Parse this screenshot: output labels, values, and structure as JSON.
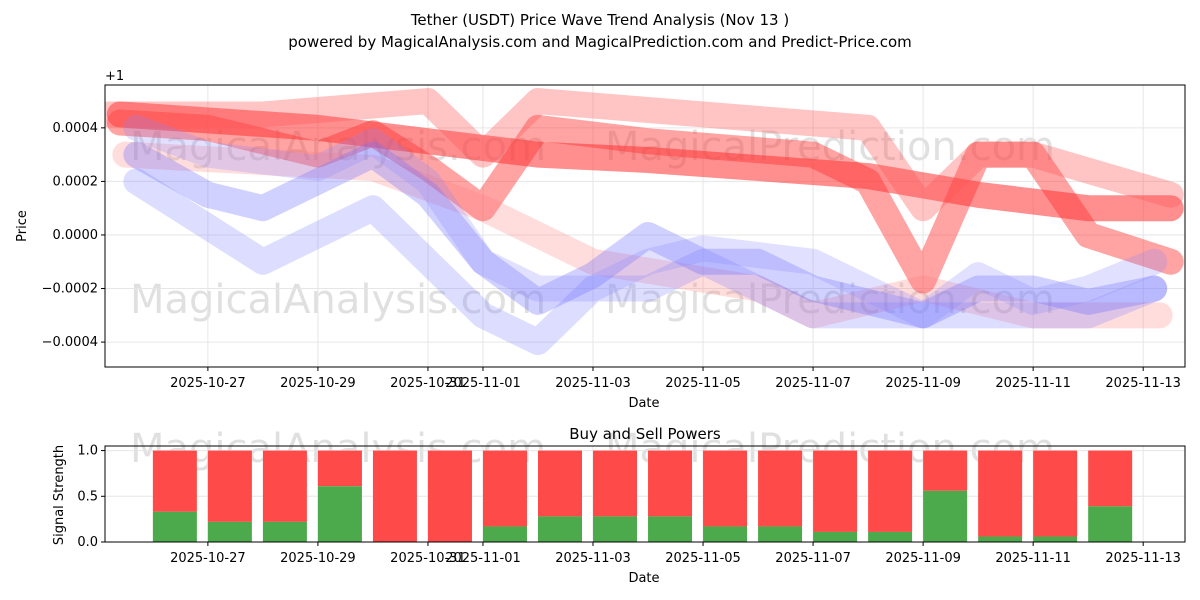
{
  "chart_data": [
    {
      "type": "line",
      "title": "Tether (USDT) Price Wave Trend Analysis (Nov 13 )",
      "subtitle": "powered by MagicalAnalysis.com and MagicalPrediction.com and Predict-Price.com",
      "xlabel": "Date",
      "ylabel": "Price",
      "offset_label": "+1",
      "yticks": [
        0.0004,
        0.0002,
        0.0,
        -0.0002,
        -0.0004
      ],
      "ytick_labels": [
        "0.0004",
        "0.0002",
        "0.0000",
        "−0.0002",
        "−0.0004"
      ],
      "ylim": [
        -0.000493,
        0.00056
      ],
      "xticks": [
        "2025-10-27",
        "2025-10-29",
        "2025-10-31",
        "2025-11-01",
        "2025-11-03",
        "2025-11-05",
        "2025-11-07",
        "2025-11-09",
        "2025-11-11",
        "2025-11-13"
      ],
      "xtick_days": [
        0,
        2,
        4,
        5,
        7,
        9,
        11,
        13,
        15,
        17
      ],
      "xlim_days": [
        -1.87,
        17.76
      ],
      "x_reference_date": "2025-10-27",
      "series": [
        {
          "name": "red-1",
          "color": "#ff3333",
          "opacity": 0.55,
          "points": [
            [
              -1.6,
              0.00045
            ],
            [
              2,
              0.0004
            ],
            [
              4,
              0.00035
            ],
            [
              6,
              0.0003
            ],
            [
              8,
              0.00028
            ],
            [
              12,
              0.00022
            ],
            [
              14,
              0.00015
            ],
            [
              16,
              0.0001
            ],
            [
              17.5,
              0.0001
            ]
          ]
        },
        {
          "name": "red-2",
          "color": "#ff3333",
          "opacity": 0.45,
          "points": [
            [
              -1.6,
              0.00042
            ],
            [
              0,
              0.0004
            ],
            [
              2,
              0.0003
            ],
            [
              3,
              0.00038
            ],
            [
              4,
              0.00025
            ],
            [
              5,
              0.0001
            ],
            [
              6,
              0.0004
            ],
            [
              8,
              0.00035
            ],
            [
              11,
              0.0003
            ],
            [
              12,
              0.0002
            ],
            [
              13,
              -0.00017
            ],
            [
              14,
              0.0003
            ],
            [
              15,
              0.0003
            ],
            [
              16,
              0.0
            ],
            [
              17.5,
              -0.0001
            ]
          ]
        },
        {
          "name": "red-3",
          "color": "#ff5555",
          "opacity": 0.35,
          "points": [
            [
              -1.8,
              0.00045
            ],
            [
              1,
              0.00045
            ],
            [
              4,
              0.0005
            ],
            [
              5,
              0.0003
            ],
            [
              6,
              0.0005
            ],
            [
              9,
              0.00045
            ],
            [
              12,
              0.0004
            ],
            [
              13,
              0.0001
            ],
            [
              14,
              0.0003
            ],
            [
              15,
              0.0003
            ],
            [
              17.5,
              0.00015
            ]
          ]
        },
        {
          "name": "red-4",
          "color": "#ff7777",
          "opacity": 0.25,
          "points": [
            [
              -1.5,
              0.0003
            ],
            [
              3,
              0.00025
            ],
            [
              5,
              0.0001
            ],
            [
              7,
              -0.0001
            ],
            [
              10,
              -0.0002
            ],
            [
              11,
              -0.0003
            ],
            [
              13,
              -0.0002
            ],
            [
              15,
              -0.0003
            ],
            [
              17.3,
              -0.0003
            ]
          ]
        },
        {
          "name": "blue-1",
          "color": "#7777ff",
          "opacity": 0.25,
          "points": [
            [
              -1.3,
              0.0002
            ],
            [
              1,
              -0.0001
            ],
            [
              2,
              0.0
            ],
            [
              3,
              0.0001
            ],
            [
              4,
              -0.0001
            ],
            [
              5,
              -0.0003
            ],
            [
              6,
              -0.0004
            ],
            [
              7,
              -0.0002
            ],
            [
              8,
              -0.0002
            ],
            [
              9,
              -0.0001
            ],
            [
              10,
              -0.0002
            ],
            [
              11,
              -0.0003
            ],
            [
              12,
              -0.0003
            ],
            [
              14,
              -0.0003
            ],
            [
              16,
              -0.0003
            ],
            [
              17.2,
              -0.0002
            ]
          ]
        },
        {
          "name": "blue-2",
          "color": "#6666ff",
          "opacity": 0.3,
          "points": [
            [
              -1.3,
              0.0003
            ],
            [
              0,
              0.00015
            ],
            [
              1,
              0.0001
            ],
            [
              3,
              0.0003
            ],
            [
              4,
              0.00015
            ],
            [
              5,
              -0.0001
            ],
            [
              6,
              -0.00025
            ],
            [
              7,
              -0.00015
            ],
            [
              8,
              0.0
            ],
            [
              9,
              -0.0001
            ],
            [
              10,
              -0.0001
            ],
            [
              11,
              -0.0002
            ],
            [
              12,
              -0.00025
            ],
            [
              13,
              -0.0003
            ],
            [
              14,
              -0.0002
            ],
            [
              15,
              -0.0002
            ],
            [
              16,
              -0.00025
            ],
            [
              17.2,
              -0.0002
            ]
          ]
        },
        {
          "name": "blue-3",
          "color": "#8888ff",
          "opacity": 0.25,
          "points": [
            [
              -1.3,
              0.0004
            ],
            [
              0,
              0.0003
            ],
            [
              2,
              0.00025
            ],
            [
              3,
              0.00035
            ],
            [
              4,
              0.0002
            ],
            [
              5,
              -0.0001
            ],
            [
              6,
              -0.0002
            ],
            [
              7,
              -0.0002
            ],
            [
              8,
              -0.0001
            ],
            [
              9,
              -5e-05
            ],
            [
              11,
              -0.0001
            ],
            [
              12,
              -0.0002
            ],
            [
              13,
              -0.0003
            ],
            [
              14,
              -0.00015
            ],
            [
              15,
              -0.00025
            ],
            [
              16,
              -0.0002
            ],
            [
              17.2,
              -0.0001
            ]
          ]
        }
      ]
    },
    {
      "type": "bar",
      "title": "Buy and Sell Powers",
      "xlabel": "Date",
      "ylabel": "Signal Strength",
      "ylim": [
        0,
        1.05
      ],
      "yticks": [
        0.0,
        0.5,
        1.0
      ],
      "ytick_labels": [
        "0.0",
        "0.5",
        "1.0"
      ],
      "xticks": [
        "2025-10-27",
        "2025-10-29",
        "2025-10-31",
        "2025-11-01",
        "2025-11-03",
        "2025-11-05",
        "2025-11-07",
        "2025-11-09",
        "2025-11-11",
        "2025-11-13"
      ],
      "xtick_days": [
        0,
        2,
        4,
        5,
        7,
        9,
        11,
        13,
        15,
        17
      ],
      "bar_days": [
        -0.6,
        0.4,
        1.4,
        2.4,
        3.4,
        4.4,
        5.4,
        6.4,
        7.4,
        8.4,
        9.4,
        10.4,
        11.4,
        12.4,
        13.4,
        14.4,
        15.4,
        16.4
      ],
      "buy": [
        0.33,
        0.22,
        0.22,
        0.61,
        0,
        0,
        0.17,
        0.28,
        0.28,
        0.28,
        0.17,
        0.17,
        0.11,
        0.11,
        0.56,
        0.06,
        0.06,
        0.39
      ],
      "sell_total": 1.0,
      "buy_color": "#4caa4c",
      "sell_color": "#ff4a4a"
    }
  ],
  "watermarks": [
    "MagicalAnalysis.com",
    "MagicalPrediction.com"
  ]
}
